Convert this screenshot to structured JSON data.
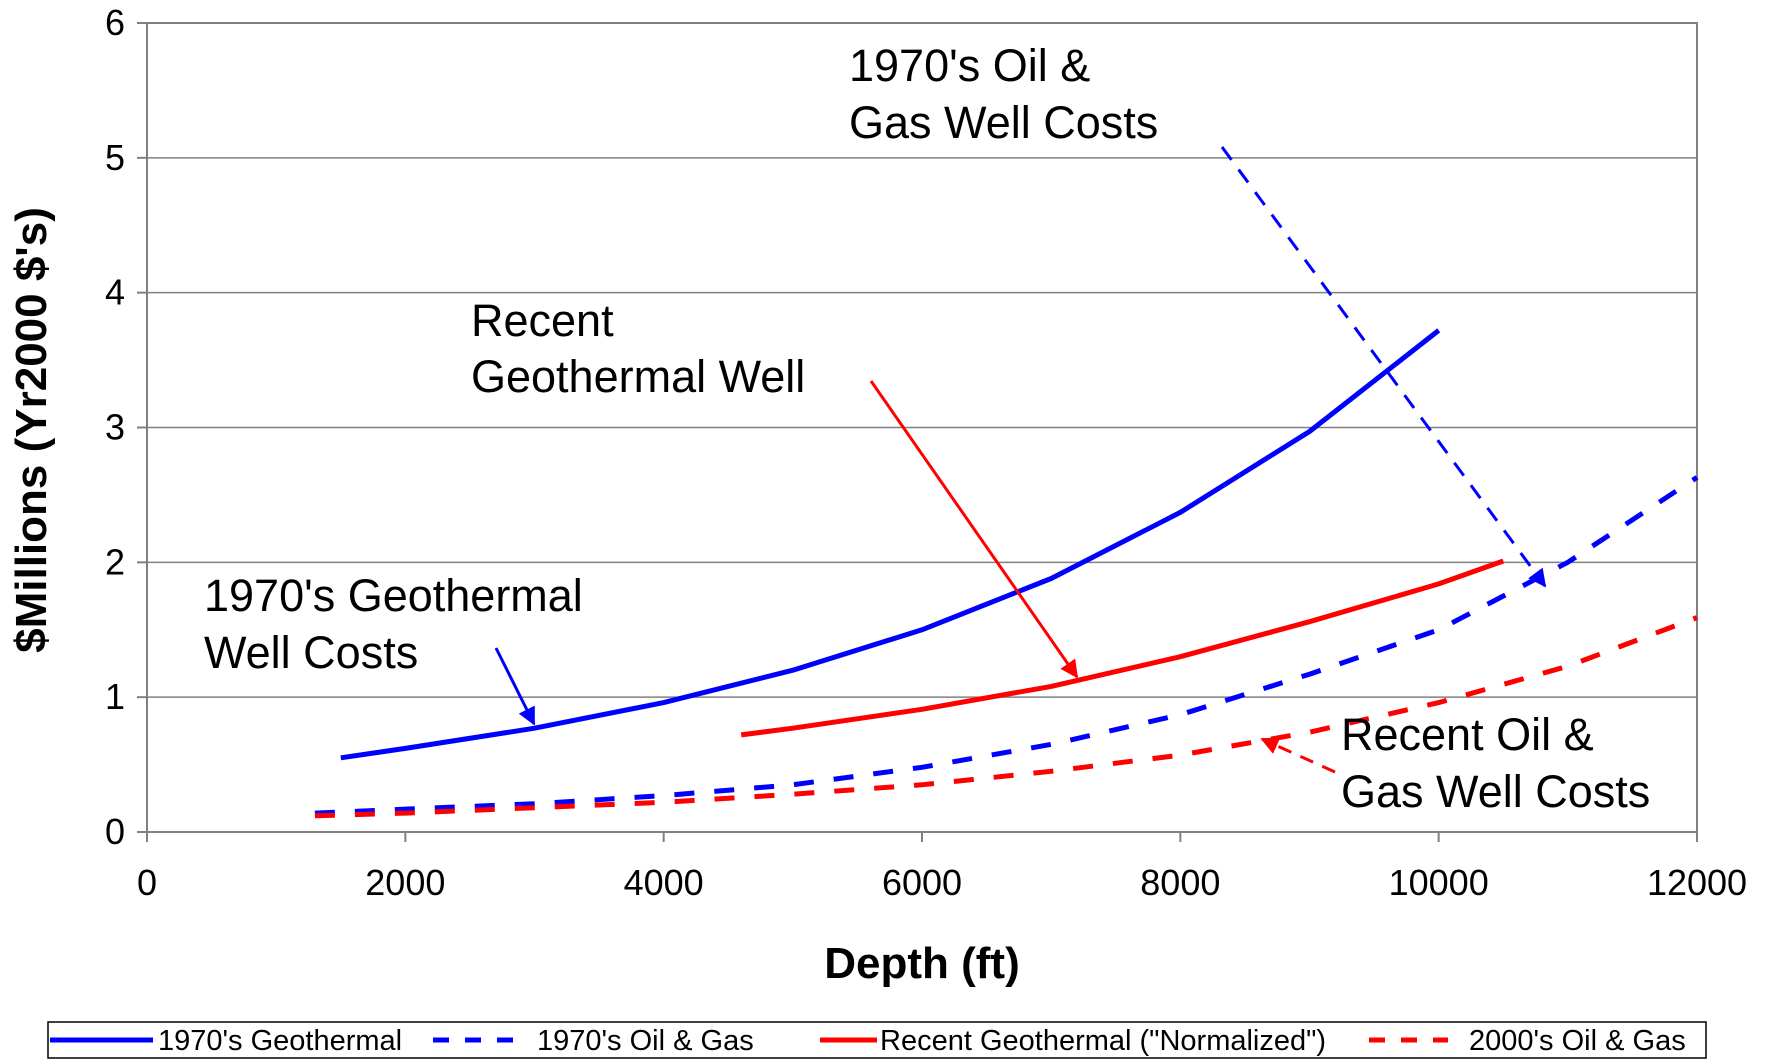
{
  "chart_data": {
    "type": "line",
    "x_label": "Depth (ft)",
    "y_label": "$Millions (Yr2000 $'s)",
    "xlim": [
      0,
      12000
    ],
    "xticks": [
      0,
      2000,
      4000,
      6000,
      8000,
      10000,
      12000
    ],
    "ylim": [
      0,
      6
    ],
    "yticks": [
      0,
      1,
      2,
      3,
      4,
      5,
      6
    ],
    "grid": true,
    "legend": "bottom",
    "series": [
      {
        "name": "1970's Geothermal",
        "color": "#0000ff",
        "dash": false,
        "x": [
          1500,
          2000,
          3000,
          4000,
          5000,
          6000,
          7000,
          8000,
          9000,
          10000
        ],
        "values": [
          0.55,
          0.62,
          0.77,
          0.96,
          1.2,
          1.5,
          1.88,
          2.37,
          2.97,
          3.72
        ]
      },
      {
        "name": "1970's Oil & Gas",
        "color": "#0000ff",
        "dash": true,
        "x": [
          1300,
          2000,
          3000,
          4000,
          5000,
          6000,
          7000,
          8000,
          9000,
          10000,
          11000,
          12000
        ],
        "values": [
          0.14,
          0.17,
          0.21,
          0.27,
          0.35,
          0.48,
          0.65,
          0.87,
          1.17,
          1.5,
          2.0,
          2.63
        ]
      },
      {
        "name": "Recent Geothermal (\"Normalized\")",
        "color": "#ff0000",
        "dash": false,
        "x": [
          4600,
          5000,
          6000,
          7000,
          8000,
          9000,
          10000,
          10500
        ],
        "values": [
          0.72,
          0.77,
          0.91,
          1.08,
          1.3,
          1.56,
          1.84,
          2.01
        ]
      },
      {
        "name": "2000's Oil & Gas",
        "color": "#ff0000",
        "dash": true,
        "x": [
          1300,
          2000,
          3000,
          4000,
          5000,
          6000,
          7000,
          8000,
          9000,
          10000,
          11000,
          12000
        ],
        "values": [
          0.12,
          0.14,
          0.18,
          0.22,
          0.28,
          0.35,
          0.45,
          0.57,
          0.74,
          0.96,
          1.23,
          1.59
        ]
      }
    ],
    "annotations": [
      {
        "lines": [
          "1970's Oil &",
          "Gas Well Costs"
        ]
      },
      {
        "lines": [
          "Recent",
          "Geothermal Well"
        ]
      },
      {
        "lines": [
          "1970's Geothermal",
          "Well Costs"
        ]
      },
      {
        "lines": [
          "Recent Oil &",
          "Gas Well Costs"
        ]
      }
    ]
  }
}
